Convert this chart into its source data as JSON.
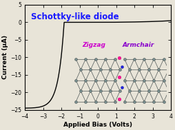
{
  "title": "Schottky-like diode",
  "title_color": "#1a1aff",
  "xlabel": "Applied Bias (Volts)",
  "ylabel": "Current (μA)",
  "xlim": [
    -4.0,
    4.0
  ],
  "ylim": [
    -25,
    5
  ],
  "xticks": [
    -4,
    -3,
    -2,
    -1,
    0,
    1,
    2,
    3,
    4
  ],
  "yticks": [
    5,
    0,
    -5,
    -10,
    -15,
    -20,
    -25
  ],
  "bg_color": "#e8e4d8",
  "line_color": "#000000",
  "inset_label_zigzag": "Zigzag",
  "inset_label_armchair": "Armchair",
  "inset_zigzag_color": "#cc00cc",
  "inset_armchair_color": "#8800cc",
  "inset_bg": "#d0cec0",
  "atom_color": "#7a9090",
  "bond_color": "#505858",
  "oxygen_color": "#ff1493",
  "nitrogen_color": "#2222dd"
}
